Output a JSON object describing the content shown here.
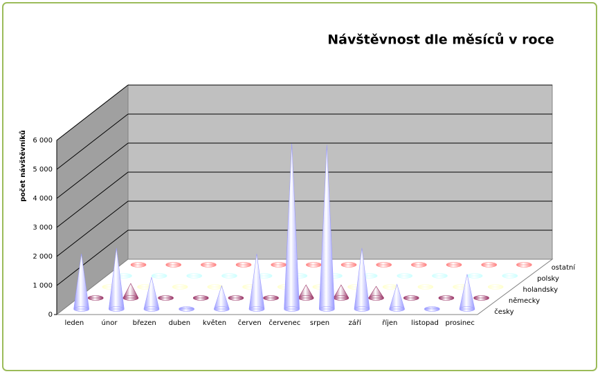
{
  "chart_data": {
    "type": "cone3d",
    "title": "Návštěvnost dle měsíců v roce",
    "y_label": "počet návštěvníků",
    "categories": [
      "leden",
      "únor",
      "březen",
      "duben",
      "květen",
      "červen",
      "červenec",
      "srpen",
      "září",
      "říjen",
      "listopad",
      "prosinec"
    ],
    "series": [
      {
        "name": "česky",
        "color": "#9999ff",
        "values": [
          1900,
          2100,
          1100,
          50,
          800,
          1900,
          5700,
          5650,
          2100,
          850,
          50,
          1200
        ]
      },
      {
        "name": "německy",
        "color": "#993366",
        "values": [
          0,
          500,
          0,
          0,
          0,
          0,
          450,
          450,
          400,
          0,
          0,
          0
        ]
      },
      {
        "name": "holandsky",
        "color": "#ffffcc",
        "values": [
          0,
          0,
          0,
          0,
          0,
          0,
          0,
          0,
          0,
          0,
          0,
          0
        ]
      },
      {
        "name": "polsky",
        "color": "#ccffff",
        "values": [
          0,
          0,
          0,
          0,
          0,
          0,
          0,
          0,
          0,
          0,
          0,
          0
        ]
      },
      {
        "name": "ostatní",
        "color": "#ff8080",
        "values": [
          0,
          0,
          0,
          0,
          0,
          0,
          0,
          0,
          0,
          0,
          0,
          0
        ]
      }
    ],
    "ylim": [
      0,
      6000
    ],
    "yticks": [
      0,
      {
        "value": 1000,
        "label": "1 000"
      },
      {
        "value": 2000,
        "label": "2 000"
      },
      {
        "value": 3000,
        "label": "3 000"
      },
      {
        "value": 4000,
        "label": "4 000"
      },
      {
        "value": 5000,
        "label": "5 000"
      },
      {
        "value": 6000,
        "label": "6 000"
      }
    ],
    "grid": true
  }
}
